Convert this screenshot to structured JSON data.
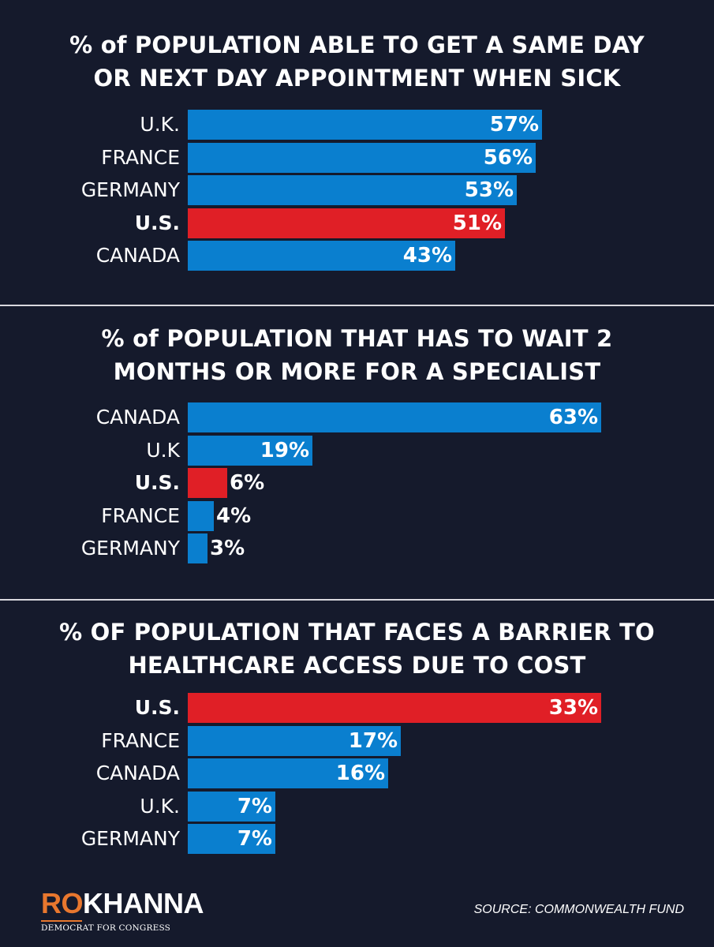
{
  "colors": {
    "background": "#151a2c",
    "bar": "#0a7fcf",
    "highlight": "#e01f26",
    "text": "#ffffff",
    "divider": "#d8d8de",
    "brand": "#e8772e"
  },
  "chart_data": [
    {
      "type": "bar",
      "orientation": "horizontal",
      "title_lines": [
        "% of POPULATION ABLE TO GET A SAME DAY",
        "OR NEXT DAY APPOINTMENT WHEN SICK"
      ],
      "categories": [
        "U.K.",
        "FRANCE",
        "GERMANY",
        "U.S.",
        "CANADA"
      ],
      "values": [
        57,
        56,
        53,
        51,
        43
      ],
      "value_labels": [
        "57%",
        "56%",
        "53%",
        "51%",
        "43%"
      ],
      "highlight": [
        false,
        false,
        false,
        true,
        false
      ],
      "xlim": [
        0,
        63
      ]
    },
    {
      "type": "bar",
      "orientation": "horizontal",
      "title_lines": [
        "% of POPULATION THAT HAS TO WAIT 2",
        "MONTHS OR MORE FOR A SPECIALIST"
      ],
      "categories": [
        "CANADA",
        "U.K",
        "U.S.",
        "FRANCE",
        "GERMANY"
      ],
      "values": [
        63,
        19,
        6,
        4,
        3
      ],
      "value_labels": [
        "63%",
        "19%",
        "6%",
        "4%",
        "3%"
      ],
      "highlight": [
        false,
        false,
        true,
        false,
        false
      ],
      "xlim": [
        0,
        63
      ]
    },
    {
      "type": "bar",
      "orientation": "horizontal",
      "title_lines": [
        "% OF POPULATION THAT FACES A BARRIER TO",
        "HEALTHCARE ACCESS DUE TO COST"
      ],
      "categories": [
        "U.S.",
        "FRANCE",
        "CANADA",
        "U.K.",
        "GERMANY"
      ],
      "values": [
        33,
        17,
        16,
        7,
        7
      ],
      "value_labels": [
        "33%",
        "17%",
        "16%",
        "7%",
        "7%"
      ],
      "highlight": [
        true,
        false,
        false,
        false,
        false
      ],
      "xlim": [
        0,
        33
      ]
    }
  ],
  "logo": {
    "first": "RO",
    "second": "KHANNA",
    "subtitle": "DEMOCRAT FOR CONGRESS"
  },
  "source": "SOURCE: COMMONWEALTH FUND"
}
